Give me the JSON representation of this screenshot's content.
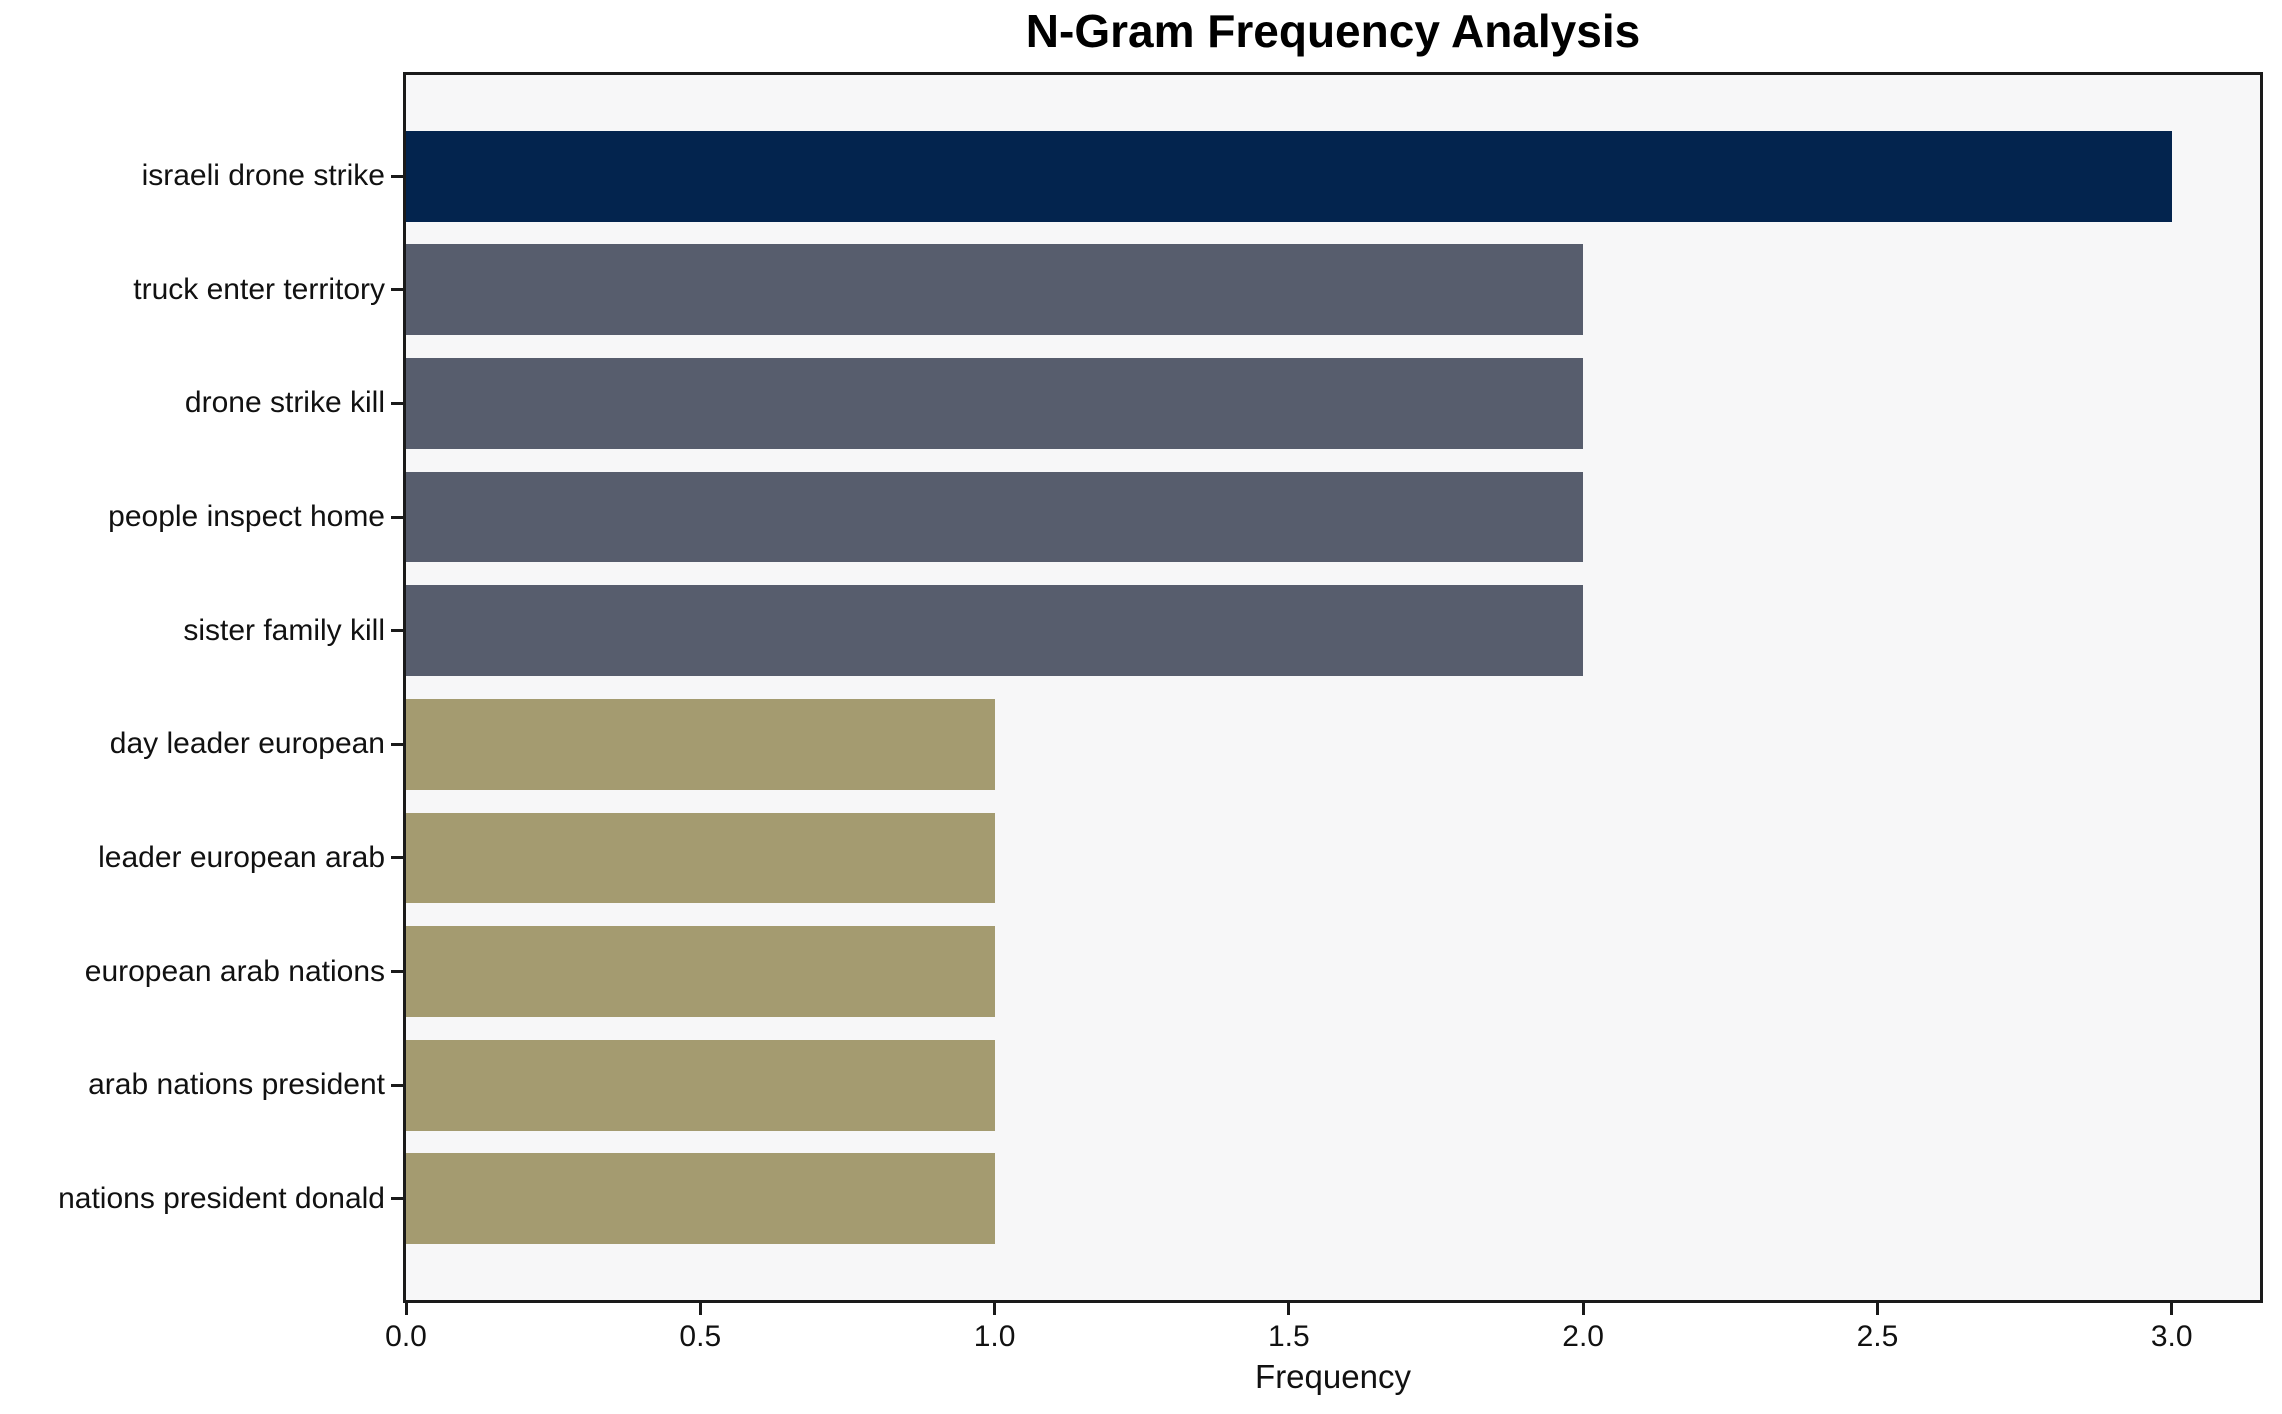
{
  "chart_data": {
    "type": "bar",
    "orientation": "horizontal",
    "title": "N-Gram Frequency Analysis",
    "xlabel": "Frequency",
    "ylabel": "",
    "categories": [
      "israeli drone strike",
      "truck enter territory",
      "drone strike kill",
      "people inspect home",
      "sister family kill",
      "day leader european",
      "leader european arab",
      "european arab nations",
      "arab nations president",
      "nations president donald"
    ],
    "values": [
      3,
      2,
      2,
      2,
      2,
      1,
      1,
      1,
      1,
      1
    ],
    "bar_colors": [
      "#03244e",
      "#575d6d",
      "#575d6d",
      "#575d6d",
      "#575d6d",
      "#a49b70",
      "#a49b70",
      "#a49b70",
      "#a49b70",
      "#a49b70"
    ],
    "x_ticks": [
      {
        "label": "0.0",
        "value": 0.0
      },
      {
        "label": "0.5",
        "value": 0.5
      },
      {
        "label": "1.0",
        "value": 1.0
      },
      {
        "label": "1.5",
        "value": 1.5
      },
      {
        "label": "2.0",
        "value": 2.0
      },
      {
        "label": "2.5",
        "value": 2.5
      },
      {
        "label": "3.0",
        "value": 3.0
      }
    ],
    "xlim": [
      0,
      3.15
    ],
    "grid": false,
    "legend": false,
    "plot_background": "#f7f7f8",
    "figure_background": "#ffffff",
    "axis_color": "#1a1a1a",
    "text_color": "#111111"
  }
}
